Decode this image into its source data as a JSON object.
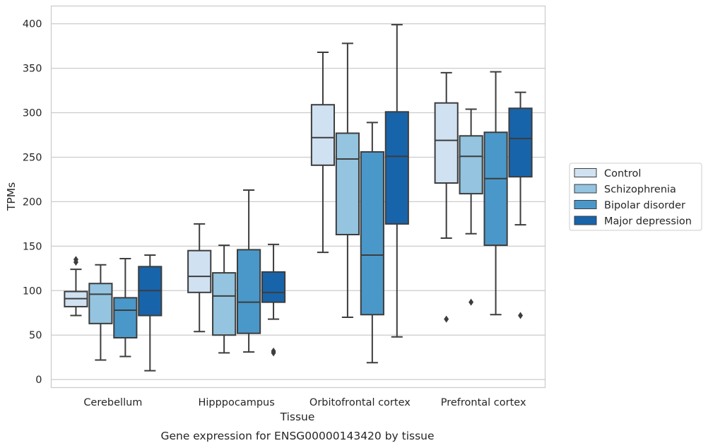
{
  "caption": "Gene expression for ENSG00000143420 by tissue",
  "chart_data": {
    "type": "box",
    "xlabel": "Tissue",
    "ylabel": "TPMs",
    "ylim": [
      -9,
      420
    ],
    "yticks": [
      0,
      50,
      100,
      150,
      200,
      250,
      300,
      350,
      400
    ],
    "grid": true,
    "legend_position": "right",
    "categories": [
      "Cerebellum",
      "Hipppocampus",
      "Orbitofrontal cortex",
      "Prefrontal cortex"
    ],
    "series": [
      {
        "name": "Control",
        "color": "#d0e1f2",
        "boxes": [
          {
            "whislo": 72,
            "q1": 82,
            "med": 91,
            "q3": 99,
            "whishi": 124,
            "fliers": [
              132,
              135
            ]
          },
          {
            "whislo": 54,
            "q1": 98,
            "med": 116,
            "q3": 145,
            "whishi": 175,
            "fliers": []
          },
          {
            "whislo": 143,
            "q1": 241,
            "med": 272,
            "q3": 309,
            "whishi": 368,
            "fliers": []
          },
          {
            "whislo": 159,
            "q1": 221,
            "med": 269,
            "q3": 311,
            "whishi": 345,
            "fliers": [
              68
            ]
          }
        ]
      },
      {
        "name": "Schizophrenia",
        "color": "#94c4df",
        "boxes": [
          {
            "whislo": 22,
            "q1": 63,
            "med": 96,
            "q3": 108,
            "whishi": 129,
            "fliers": []
          },
          {
            "whislo": 30,
            "q1": 50,
            "med": 94,
            "q3": 120,
            "whishi": 151,
            "fliers": []
          },
          {
            "whislo": 70,
            "q1": 163,
            "med": 248,
            "q3": 277,
            "whishi": 378,
            "fliers": []
          },
          {
            "whislo": 164,
            "q1": 209,
            "med": 251,
            "q3": 274,
            "whishi": 304,
            "fliers": [
              87
            ]
          }
        ]
      },
      {
        "name": "Bipolar disorder",
        "color": "#4a98c9",
        "boxes": [
          {
            "whislo": 26,
            "q1": 47,
            "med": 78,
            "q3": 92,
            "whishi": 136,
            "fliers": []
          },
          {
            "whislo": 31,
            "q1": 52,
            "med": 87,
            "q3": 146,
            "whishi": 213,
            "fliers": []
          },
          {
            "whislo": 19,
            "q1": 73,
            "med": 140,
            "q3": 256,
            "whishi": 289,
            "fliers": []
          },
          {
            "whislo": 73,
            "q1": 151,
            "med": 226,
            "q3": 278,
            "whishi": 346,
            "fliers": []
          }
        ]
      },
      {
        "name": "Major depression",
        "color": "#1764ab",
        "boxes": [
          {
            "whislo": 10,
            "q1": 72,
            "med": 100,
            "q3": 127,
            "whishi": 140,
            "fliers": []
          },
          {
            "whislo": 68,
            "q1": 87,
            "med": 98,
            "q3": 121,
            "whishi": 152,
            "fliers": [
              30,
              32
            ]
          },
          {
            "whislo": 48,
            "q1": 175,
            "med": 251,
            "q3": 301,
            "whishi": 399,
            "fliers": []
          },
          {
            "whislo": 174,
            "q1": 228,
            "med": 271,
            "q3": 305,
            "whishi": 323,
            "fliers": [
              72
            ]
          }
        ]
      }
    ]
  }
}
